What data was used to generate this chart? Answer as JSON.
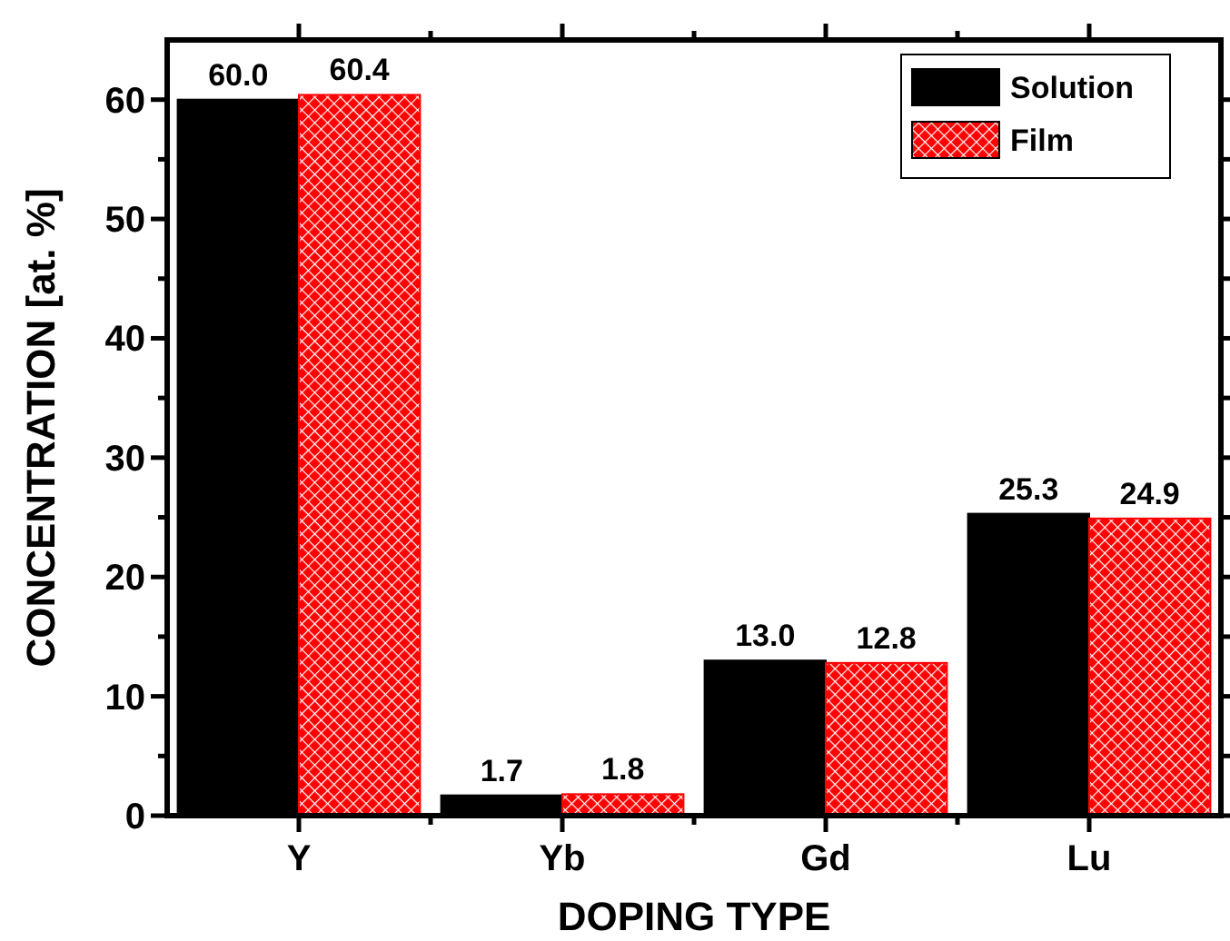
{
  "chart_data": {
    "type": "bar",
    "xlabel": "DOPING TYPE",
    "ylabel": "CONCENTRATION [at. %]",
    "categories": [
      "Y",
      "Yb",
      "Gd",
      "Lu"
    ],
    "series": [
      {
        "name": "Solution",
        "color": "#000000",
        "values": [
          60.0,
          1.7,
          13.0,
          25.3
        ],
        "value_labels": [
          "60.0",
          "1.7",
          "13.0",
          "25.3"
        ]
      },
      {
        "name": "Film",
        "color": "#ff0000",
        "values": [
          60.4,
          1.8,
          12.8,
          24.9
        ],
        "value_labels": [
          "60.4",
          "1.8",
          "12.8",
          "24.9"
        ]
      }
    ],
    "ylim": [
      0,
      65
    ],
    "yticks": [
      0,
      {
        "value": 5,
        "label": null
      },
      10,
      {
        "value": 15,
        "label": null
      },
      20,
      {
        "value": 25,
        "label": null
      },
      30,
      {
        "value": 35,
        "label": null
      },
      40,
      {
        "value": 45,
        "label": null
      },
      50,
      {
        "value": 55,
        "label": null
      },
      60
    ],
    "legend": "top right",
    "grid": false
  }
}
